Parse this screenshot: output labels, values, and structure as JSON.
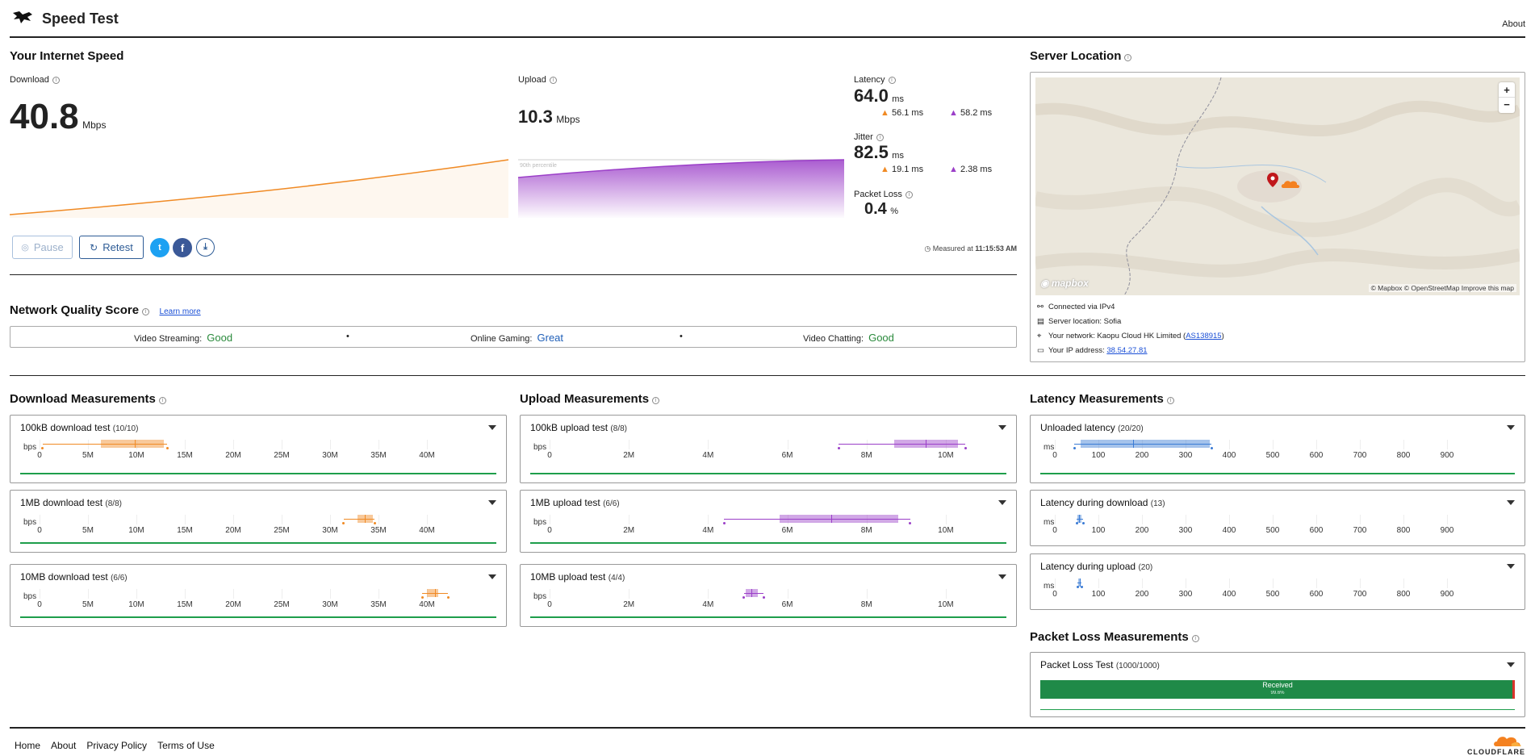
{
  "header": {
    "title": "Speed Test",
    "about": "About"
  },
  "speed": {
    "section_title": "Your Internet Speed",
    "download_label": "Download",
    "download_value": "40.8",
    "download_unit": "Mbps",
    "upload_label": "Upload",
    "upload_value": "10.3",
    "upload_unit": "Mbps",
    "percentile_label": "90th percentile",
    "latency_label": "Latency",
    "latency_value": "64.0",
    "latency_unit": "ms",
    "latency_down": "56.1 ms",
    "latency_up": "58.2 ms",
    "jitter_label": "Jitter",
    "jitter_value": "82.5",
    "jitter_unit": "ms",
    "jitter_down": "19.1 ms",
    "jitter_up": "2.38 ms",
    "packet_loss_label": "Packet Loss",
    "packet_loss_value": "0.4",
    "packet_loss_unit": "%",
    "pause_label": "Pause",
    "retest_label": "Retest",
    "measured_prefix": "Measured at",
    "measured_time": "11:15:53 AM"
  },
  "quality": {
    "title": "Network Quality Score",
    "learn_more": "Learn more",
    "items": [
      {
        "label": "Video Streaming:",
        "value": "Good",
        "color": "#2a8a3c"
      },
      {
        "label": "Online Gaming:",
        "value": "Great",
        "color": "#1f5fb8"
      },
      {
        "label": "Video Chatting:",
        "value": "Good",
        "color": "#2a8a3c"
      }
    ],
    "separator": "•"
  },
  "server": {
    "title": "Server Location",
    "map_attribution": "© Mapbox © OpenStreetMap",
    "improve": "Improve this map",
    "mapbox": "mapbox",
    "zoom_in": "+",
    "zoom_out": "−",
    "connected": "Connected via IPv4",
    "server_location": "Server location: Sofia",
    "network_prefix": "Your network: Kaopu Cloud HK Limited (",
    "network_asn": "AS138915",
    "network_suffix": ")",
    "ip_prefix": "Your IP address:",
    "ip": "38.54.27.81"
  },
  "download_measurements": {
    "title": "Download Measurements",
    "unit": "bps",
    "ticks": [
      "0",
      "5M",
      "10M",
      "15M",
      "20M",
      "25M",
      "30M",
      "35M",
      "40M"
    ],
    "tests": [
      {
        "label": "100kB download test",
        "count": "(10/10)"
      },
      {
        "label": "1MB download test",
        "count": "(8/8)"
      },
      {
        "label": "10MB download test",
        "count": "(6/6)"
      }
    ]
  },
  "upload_measurements": {
    "title": "Upload Measurements",
    "unit": "bps",
    "ticks": [
      "0",
      "2M",
      "4M",
      "6M",
      "8M",
      "10M"
    ],
    "tests": [
      {
        "label": "100kB upload test",
        "count": "(8/8)"
      },
      {
        "label": "1MB upload test",
        "count": "(6/6)"
      },
      {
        "label": "10MB upload test",
        "count": "(4/4)"
      }
    ]
  },
  "latency_measurements": {
    "title": "Latency Measurements",
    "unit": "ms",
    "ticks": [
      "0",
      "100",
      "200",
      "300",
      "400",
      "500",
      "600",
      "700",
      "800",
      "900"
    ],
    "tests": [
      {
        "label": "Unloaded latency",
        "count": "(20/20)"
      },
      {
        "label": "Latency during download",
        "count": "(13)"
      },
      {
        "label": "Latency during upload",
        "count": "(20)"
      }
    ]
  },
  "packet_loss": {
    "title": "Packet Loss Measurements",
    "test_label": "Packet Loss Test",
    "test_count": "(1000/1000)",
    "received_label": "Received",
    "received_pct": "99.6%"
  },
  "footer": {
    "links": [
      "Home",
      "About",
      "Privacy Policy",
      "Terms of Use"
    ],
    "brand": "CLOUDFLARE"
  },
  "colors": {
    "download": "#f08a24",
    "upload": "#9b3fc8",
    "latency": "#3a7bd5",
    "green": "#1e9e4b"
  },
  "chart_data": [
    {
      "type": "box",
      "title": "100kB download test",
      "min": 300000,
      "q1": 6300000,
      "median": 9800000,
      "q3": 12800000,
      "max": 13200000
    },
    {
      "type": "box",
      "title": "1MB download test",
      "min": 31400000,
      "q1": 32800000,
      "median": 33600000,
      "q3": 34400000,
      "max": 34600000
    },
    {
      "type": "box",
      "title": "10MB download test",
      "min": 39500000,
      "q1": 40000000,
      "median": 40800000,
      "q3": 41200000,
      "max": 42200000
    },
    {
      "type": "box",
      "title": "100kB upload test",
      "min": 7300000,
      "q1": 8700000,
      "median": 9500000,
      "q3": 10300000,
      "max": 10500000
    },
    {
      "type": "box",
      "title": "1MB upload test",
      "min": 4400000,
      "q1": 5800000,
      "median": 7100000,
      "q3": 8800000,
      "max": 9100000
    },
    {
      "type": "box",
      "title": "10MB upload test",
      "min": 4900000,
      "q1": 4950000,
      "median": 5100000,
      "q3": 5250000,
      "max": 5400000
    },
    {
      "type": "box",
      "title": "Unloaded latency",
      "min": 45,
      "q1": 60,
      "median": 180,
      "q3": 355,
      "max": 360
    },
    {
      "type": "box",
      "title": "Latency during download",
      "min": 50,
      "q1": 52,
      "median": 56,
      "q3": 62,
      "max": 65
    },
    {
      "type": "box",
      "title": "Latency during upload",
      "min": 52,
      "q1": 54,
      "median": 57,
      "q3": 60,
      "max": 62
    }
  ]
}
